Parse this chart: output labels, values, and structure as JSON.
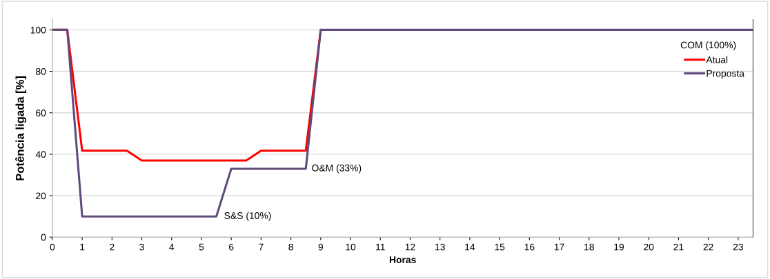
{
  "chart_data": {
    "type": "line",
    "xlabel": "Horas",
    "ylabel": "Potência ligada [%]",
    "xlim": [
      0,
      23.5
    ],
    "xticks": [
      0,
      1,
      2,
      3,
      4,
      5,
      6,
      7,
      8,
      9,
      10,
      11,
      12,
      13,
      14,
      15,
      16,
      17,
      18,
      19,
      20,
      21,
      22,
      23
    ],
    "ylim": [
      0,
      105
    ],
    "yticks": [
      0,
      20,
      40,
      60,
      80,
      100
    ],
    "grid": "y",
    "legend": "right",
    "marker": "none",
    "line_style": "solid",
    "series": [
      {
        "name": "Atual",
        "color": "#ff0000",
        "x": [
          0,
          0.5,
          1,
          2.5,
          3,
          6.5,
          7,
          8.5,
          9
        ],
        "values": [
          100,
          100,
          41.7,
          41.7,
          37,
          37,
          41.7,
          41.7,
          100
        ]
      },
      {
        "name": "Proposta",
        "color": "#604a7b",
        "x": [
          0,
          0.5,
          1,
          5.5,
          6,
          8.5,
          9,
          23.5
        ],
        "values": [
          100,
          100,
          10,
          10,
          33,
          33,
          100,
          100
        ]
      }
    ],
    "annotations": [
      {
        "text": "COM (100%)",
        "x": 22,
        "y": 100
      },
      {
        "text": "O&M (33%)",
        "x": 8.5,
        "y": 33
      },
      {
        "text": "S&S (10%)",
        "x": 5.5,
        "y": 10
      }
    ]
  }
}
